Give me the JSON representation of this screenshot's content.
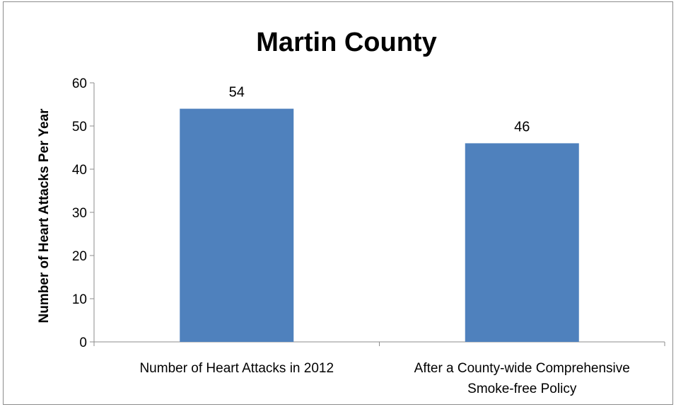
{
  "chart_data": {
    "type": "bar",
    "title": "Martin County",
    "xlabel": "",
    "ylabel": "Number of Heart Attacks Per Year",
    "ylim": [
      0,
      60
    ],
    "yticks": [
      0,
      10,
      20,
      30,
      40,
      50,
      60
    ],
    "grid": false,
    "legend": "none",
    "categories": [
      [
        "Number of Heart Attacks in 2012"
      ],
      [
        "After a County-wide Comprehensive",
        "Smoke-free Policy"
      ]
    ],
    "values": [
      54,
      46
    ],
    "data_labels": [
      "54",
      "46"
    ],
    "bar_color": "#4f81bd"
  }
}
